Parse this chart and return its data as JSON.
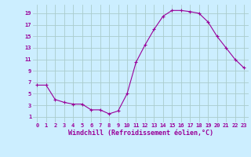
{
  "x": [
    0,
    1,
    2,
    3,
    4,
    5,
    6,
    7,
    8,
    9,
    10,
    11,
    12,
    13,
    14,
    15,
    16,
    17,
    18,
    19,
    20,
    21,
    22,
    23
  ],
  "y": [
    6.5,
    6.5,
    4.0,
    3.5,
    3.2,
    3.2,
    2.2,
    2.2,
    1.5,
    2.0,
    5.0,
    10.5,
    13.5,
    16.2,
    18.5,
    19.5,
    19.5,
    19.3,
    19.0,
    17.5,
    15.0,
    13.0,
    11.0,
    9.5
  ],
  "line_color": "#990099",
  "marker": "+",
  "marker_size": 3,
  "bg_color": "#cceeff",
  "grid_color": "#aacccc",
  "xlabel": "Windchill (Refroidissement éolien,°C)",
  "xlabel_color": "#990099",
  "tick_color": "#990099",
  "ytick_labels": [
    "1",
    "3",
    "5",
    "7",
    "9",
    "11",
    "13",
    "15",
    "17",
    "19"
  ],
  "ytick_values": [
    1,
    3,
    5,
    7,
    9,
    11,
    13,
    15,
    17,
    19
  ],
  "xtick_values": [
    0,
    1,
    2,
    3,
    4,
    5,
    6,
    7,
    8,
    9,
    10,
    11,
    12,
    13,
    14,
    15,
    16,
    17,
    18,
    19,
    20,
    21,
    22,
    23
  ],
  "xlim": [
    -0.5,
    23.5
  ],
  "ylim": [
    0.0,
    20.5
  ]
}
